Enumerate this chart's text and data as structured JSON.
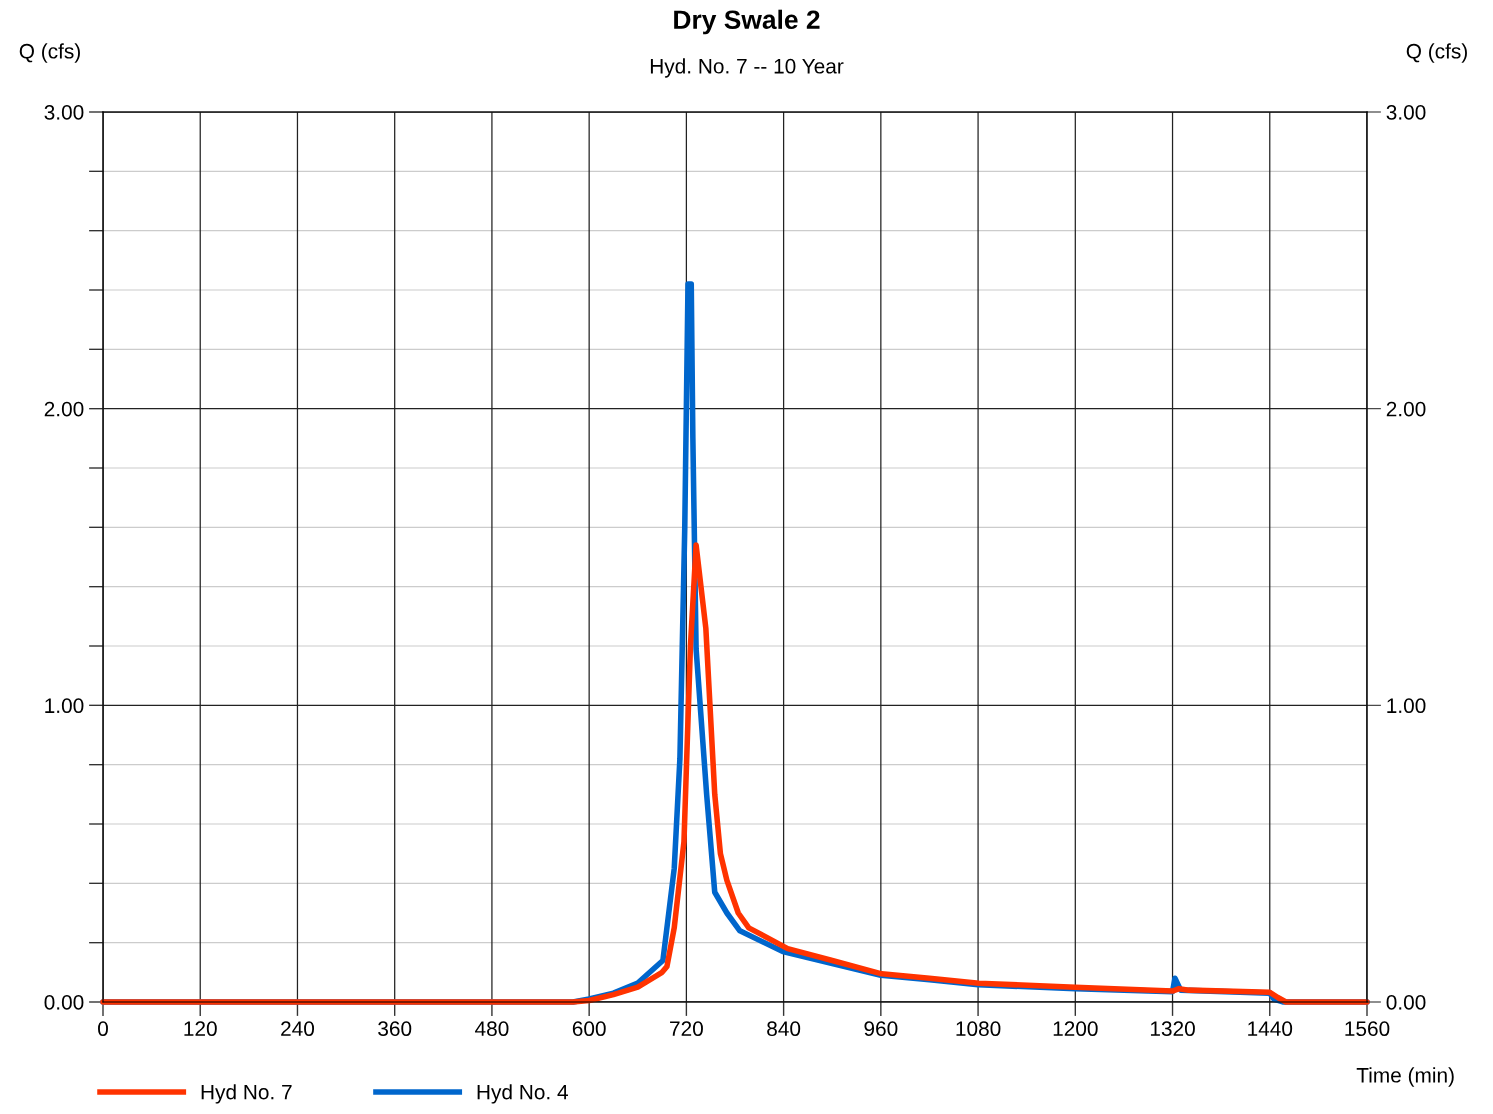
{
  "chart_data": {
    "type": "line",
    "title": "Dry Swale 2",
    "subtitle": "Hyd. No. 7 -- 10 Year",
    "xlabel": "Time (min)",
    "ylabel": "Q (cfs)",
    "y2label": "Q (cfs)",
    "xlim": [
      0,
      1560
    ],
    "xticks": [
      0,
      120,
      240,
      360,
      480,
      600,
      720,
      840,
      960,
      1080,
      1200,
      1320,
      1440,
      1560
    ],
    "ylim": [
      0,
      3
    ],
    "yticks": [
      {
        "value": 0,
        "label": "0.00"
      },
      {
        "value": 0.2,
        "label": null
      },
      {
        "value": 0.4,
        "label": null
      },
      {
        "value": 0.6,
        "label": null
      },
      {
        "value": 0.8,
        "label": null
      },
      {
        "value": 1,
        "label": "1.00"
      },
      {
        "value": 1.2,
        "label": null
      },
      {
        "value": 1.4,
        "label": null
      },
      {
        "value": 1.6,
        "label": null
      },
      {
        "value": 1.8,
        "label": null
      },
      {
        "value": 2,
        "label": "2.00"
      },
      {
        "value": 2.2,
        "label": null
      },
      {
        "value": 2.4,
        "label": null
      },
      {
        "value": 2.6,
        "label": null
      },
      {
        "value": 2.8,
        "label": null
      },
      {
        "value": 3,
        "label": "3.00"
      }
    ],
    "y2lim": [
      0,
      3
    ],
    "y2ticks": [
      {
        "value": 0,
        "label": "0.00"
      },
      {
        "value": 1,
        "label": "1.00"
      },
      {
        "value": 2,
        "label": "2.00"
      },
      {
        "value": 3,
        "label": "3.00"
      }
    ],
    "grid": true,
    "legend": "bottom left",
    "marker": "none",
    "line_style": "solid",
    "series": [
      {
        "name": "Hyd No. 4",
        "color": "#0066cc",
        "x": [
          0,
          580,
          600,
          630,
          660,
          691,
          705,
          712,
          718,
          722,
          726,
          728,
          732,
          745,
          755,
          770,
          786,
          839,
          900,
          960,
          1020,
          1080,
          1200,
          1320,
          1323,
          1330,
          1440,
          1445,
          1457,
          1560
        ],
        "values": [
          0,
          0,
          0.01,
          0.03,
          0.064,
          0.14,
          0.45,
          0.82,
          1.6,
          2.42,
          2.42,
          1.9,
          1.19,
          0.7,
          0.37,
          0.3,
          0.24,
          0.17,
          0.13,
          0.09,
          0.075,
          0.058,
          0.045,
          0.035,
          0.08,
          0.04,
          0.03,
          0.01,
          0,
          0
        ]
      },
      {
        "name": "Hyd No. 7",
        "color": "#ff3300",
        "x": [
          0,
          580,
          600,
          630,
          660,
          690,
          696,
          705,
          717,
          725,
          732,
          744,
          755,
          762,
          770,
          784,
          797,
          845,
          900,
          961,
          1020,
          1081,
          1200,
          1320,
          1328,
          1340,
          1440,
          1450,
          1460,
          1560
        ],
        "values": [
          0,
          0,
          0.005,
          0.025,
          0.05,
          0.1,
          0.12,
          0.25,
          0.54,
          1.2,
          1.54,
          1.26,
          0.7,
          0.5,
          0.41,
          0.3,
          0.25,
          0.18,
          0.14,
          0.095,
          0.08,
          0.063,
          0.05,
          0.037,
          0.045,
          0.04,
          0.033,
          0.015,
          0,
          0
        ]
      }
    ]
  }
}
